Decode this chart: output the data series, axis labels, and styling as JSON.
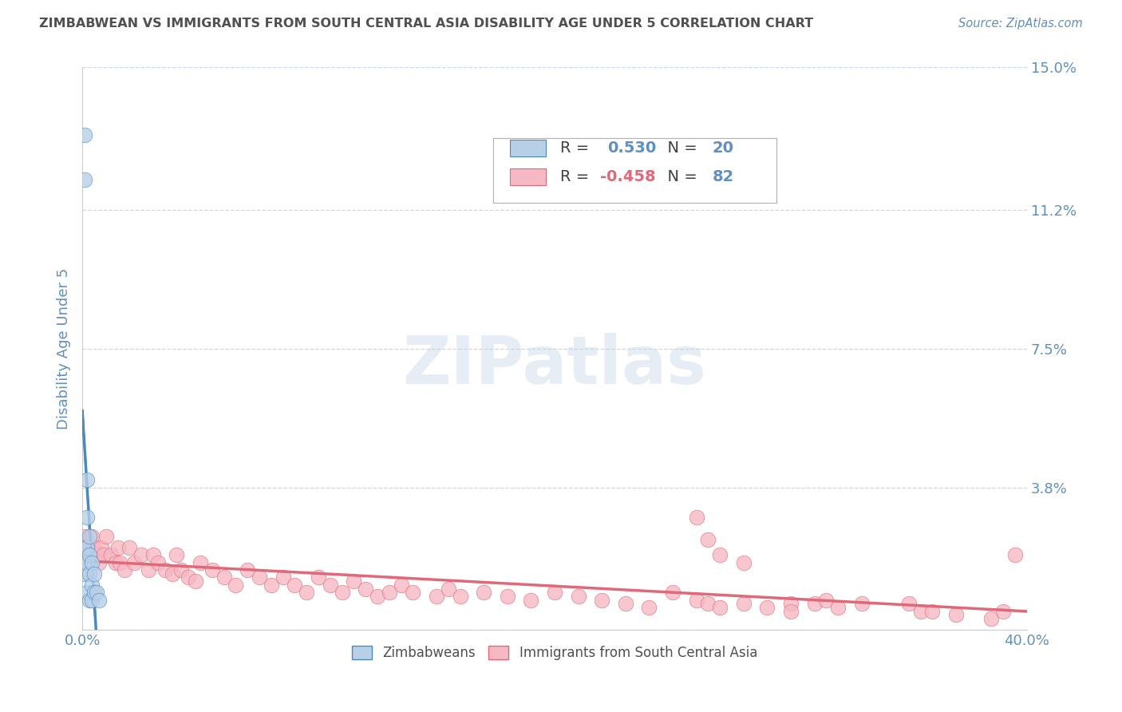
{
  "title": "ZIMBABWEAN VS IMMIGRANTS FROM SOUTH CENTRAL ASIA DISABILITY AGE UNDER 5 CORRELATION CHART",
  "source": "Source: ZipAtlas.com",
  "ylabel": "Disability Age Under 5",
  "xlim": [
    0.0,
    0.4
  ],
  "ylim": [
    0.0,
    0.15
  ],
  "yticks": [
    0.0,
    0.038,
    0.075,
    0.112,
    0.15
  ],
  "ytick_labels": [
    "",
    "3.8%",
    "7.5%",
    "11.2%",
    "15.0%"
  ],
  "xtick_positions": [
    0.0,
    0.1,
    0.2,
    0.3,
    0.4
  ],
  "xtick_labels": [
    "0.0%",
    "",
    "",
    "",
    "40.0%"
  ],
  "blue_R": 0.53,
  "blue_N": 20,
  "pink_R": -0.458,
  "pink_N": 82,
  "blue_fill_color": "#b8cfe8",
  "pink_fill_color": "#f5b8c4",
  "blue_line_color": "#4a8abf",
  "pink_line_color": "#e06878",
  "grid_color": "#c8d8e8",
  "background_color": "#ffffff",
  "watermark": "ZIPatlas",
  "watermark_color": "#c8d8e8",
  "title_color": "#505050",
  "source_color": "#6090bf",
  "axis_label_color": "#6090bf",
  "tick_label_color": "#6090bf",
  "legend_text_color": "#6090bf",
  "legend_label_color": "#404040",
  "blue_points_x": [
    0.001,
    0.001,
    0.001,
    0.001,
    0.002,
    0.002,
    0.002,
    0.002,
    0.002,
    0.003,
    0.003,
    0.003,
    0.003,
    0.004,
    0.004,
    0.004,
    0.005,
    0.005,
    0.006,
    0.007
  ],
  "blue_points_y": [
    0.132,
    0.12,
    0.02,
    0.015,
    0.04,
    0.03,
    0.022,
    0.018,
    0.01,
    0.025,
    0.02,
    0.015,
    0.008,
    0.018,
    0.012,
    0.008,
    0.015,
    0.01,
    0.01,
    0.008
  ],
  "pink_points_x": [
    0.001,
    0.001,
    0.002,
    0.003,
    0.004,
    0.005,
    0.006,
    0.007,
    0.008,
    0.009,
    0.01,
    0.012,
    0.014,
    0.015,
    0.016,
    0.018,
    0.02,
    0.022,
    0.025,
    0.028,
    0.03,
    0.032,
    0.035,
    0.038,
    0.04,
    0.042,
    0.045,
    0.048,
    0.05,
    0.055,
    0.06,
    0.065,
    0.07,
    0.075,
    0.08,
    0.085,
    0.09,
    0.095,
    0.1,
    0.105,
    0.11,
    0.115,
    0.12,
    0.125,
    0.13,
    0.135,
    0.14,
    0.15,
    0.155,
    0.16,
    0.17,
    0.18,
    0.19,
    0.2,
    0.21,
    0.22,
    0.23,
    0.24,
    0.25,
    0.26,
    0.265,
    0.27,
    0.28,
    0.29,
    0.3,
    0.3,
    0.31,
    0.315,
    0.32,
    0.33,
    0.26,
    0.265,
    0.27,
    0.28,
    0.35,
    0.355,
    0.36,
    0.37,
    0.385,
    0.39,
    0.395,
    0.001
  ],
  "pink_points_y": [
    0.025,
    0.018,
    0.022,
    0.02,
    0.025,
    0.022,
    0.02,
    0.018,
    0.022,
    0.02,
    0.025,
    0.02,
    0.018,
    0.022,
    0.018,
    0.016,
    0.022,
    0.018,
    0.02,
    0.016,
    0.02,
    0.018,
    0.016,
    0.015,
    0.02,
    0.016,
    0.014,
    0.013,
    0.018,
    0.016,
    0.014,
    0.012,
    0.016,
    0.014,
    0.012,
    0.014,
    0.012,
    0.01,
    0.014,
    0.012,
    0.01,
    0.013,
    0.011,
    0.009,
    0.01,
    0.012,
    0.01,
    0.009,
    0.011,
    0.009,
    0.01,
    0.009,
    0.008,
    0.01,
    0.009,
    0.008,
    0.007,
    0.006,
    0.01,
    0.008,
    0.007,
    0.006,
    0.007,
    0.006,
    0.007,
    0.005,
    0.007,
    0.008,
    0.006,
    0.007,
    0.03,
    0.024,
    0.02,
    0.018,
    0.007,
    0.005,
    0.005,
    0.004,
    0.003,
    0.005,
    0.02,
    0.022
  ]
}
